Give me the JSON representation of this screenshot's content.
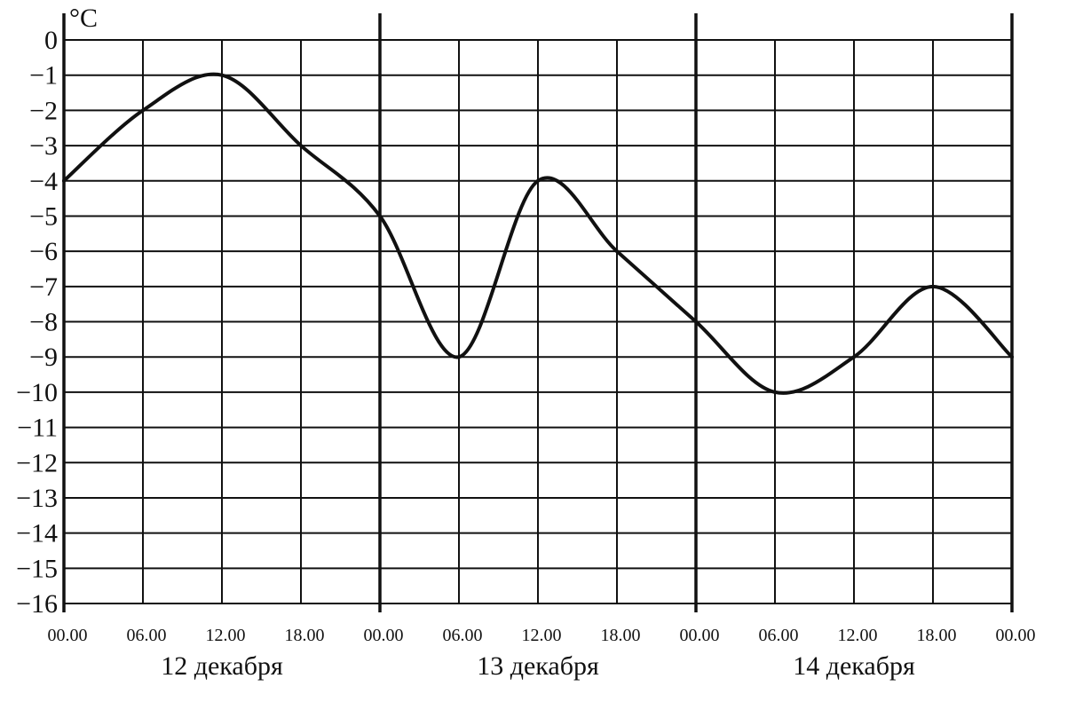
{
  "chart_data": {
    "type": "line",
    "unit_label": "°C",
    "ylim": [
      -16,
      0
    ],
    "y_ticks": [
      "0",
      "−1",
      "−2",
      "−3",
      "−4",
      "−5",
      "−6",
      "−7",
      "−8",
      "−9",
      "−10",
      "−11",
      "−12",
      "−13",
      "−14",
      "−15",
      "−16"
    ],
    "x_tick_labels": [
      "00.00",
      "06.00",
      "12.00",
      "18.00",
      "00.00",
      "06.00",
      "12.00",
      "18.00",
      "00.00",
      "06.00",
      "12.00",
      "18.00",
      "00.00"
    ],
    "day_labels": [
      "12 декабря",
      "13 декабря",
      "14 декабря"
    ],
    "grid": true,
    "series": [
      {
        "x": [
          "12 декабря 00.00",
          "12 декабря 06.00",
          "12 декабря 12.00",
          "12 декабря 18.00",
          "13 декабря 00.00",
          "13 декабря 06.00",
          "13 декабря 12.00",
          "13 декабря 18.00",
          "14 декабря 00.00",
          "14 декабря 06.00",
          "14 декабря 12.00",
          "14 декабря 18.00",
          "15 декабря 00.00"
        ],
        "values": [
          -4,
          -2,
          -1,
          -3,
          -5,
          -9,
          -4,
          -6,
          -8,
          -10,
          -9,
          -7,
          -9
        ]
      }
    ]
  }
}
